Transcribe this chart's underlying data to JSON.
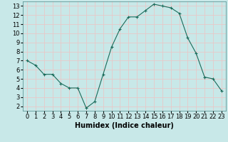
{
  "x": [
    0,
    1,
    2,
    3,
    4,
    5,
    6,
    7,
    8,
    9,
    10,
    11,
    12,
    13,
    14,
    15,
    16,
    17,
    18,
    19,
    20,
    21,
    22,
    23
  ],
  "y": [
    7,
    6.5,
    5.5,
    5.5,
    4.5,
    4,
    4,
    1.8,
    2.5,
    5.5,
    8.5,
    10.5,
    11.8,
    11.8,
    12.5,
    13.2,
    13,
    12.8,
    12.2,
    9.5,
    7.8,
    5.2,
    5,
    3.7
  ],
  "line_color": "#1a6b5a",
  "marker": "+",
  "bg_color": "#c8e8e8",
  "grid_color": "#e8c8c8",
  "xlabel": "Humidex (Indice chaleur)",
  "xlim": [
    -0.5,
    23.5
  ],
  "ylim": [
    1.5,
    13.5
  ],
  "yticks": [
    2,
    3,
    4,
    5,
    6,
    7,
    8,
    9,
    10,
    11,
    12,
    13
  ],
  "xticks": [
    0,
    1,
    2,
    3,
    4,
    5,
    6,
    7,
    8,
    9,
    10,
    11,
    12,
    13,
    14,
    15,
    16,
    17,
    18,
    19,
    20,
    21,
    22,
    23
  ],
  "label_fontsize": 7,
  "tick_fontsize": 6
}
